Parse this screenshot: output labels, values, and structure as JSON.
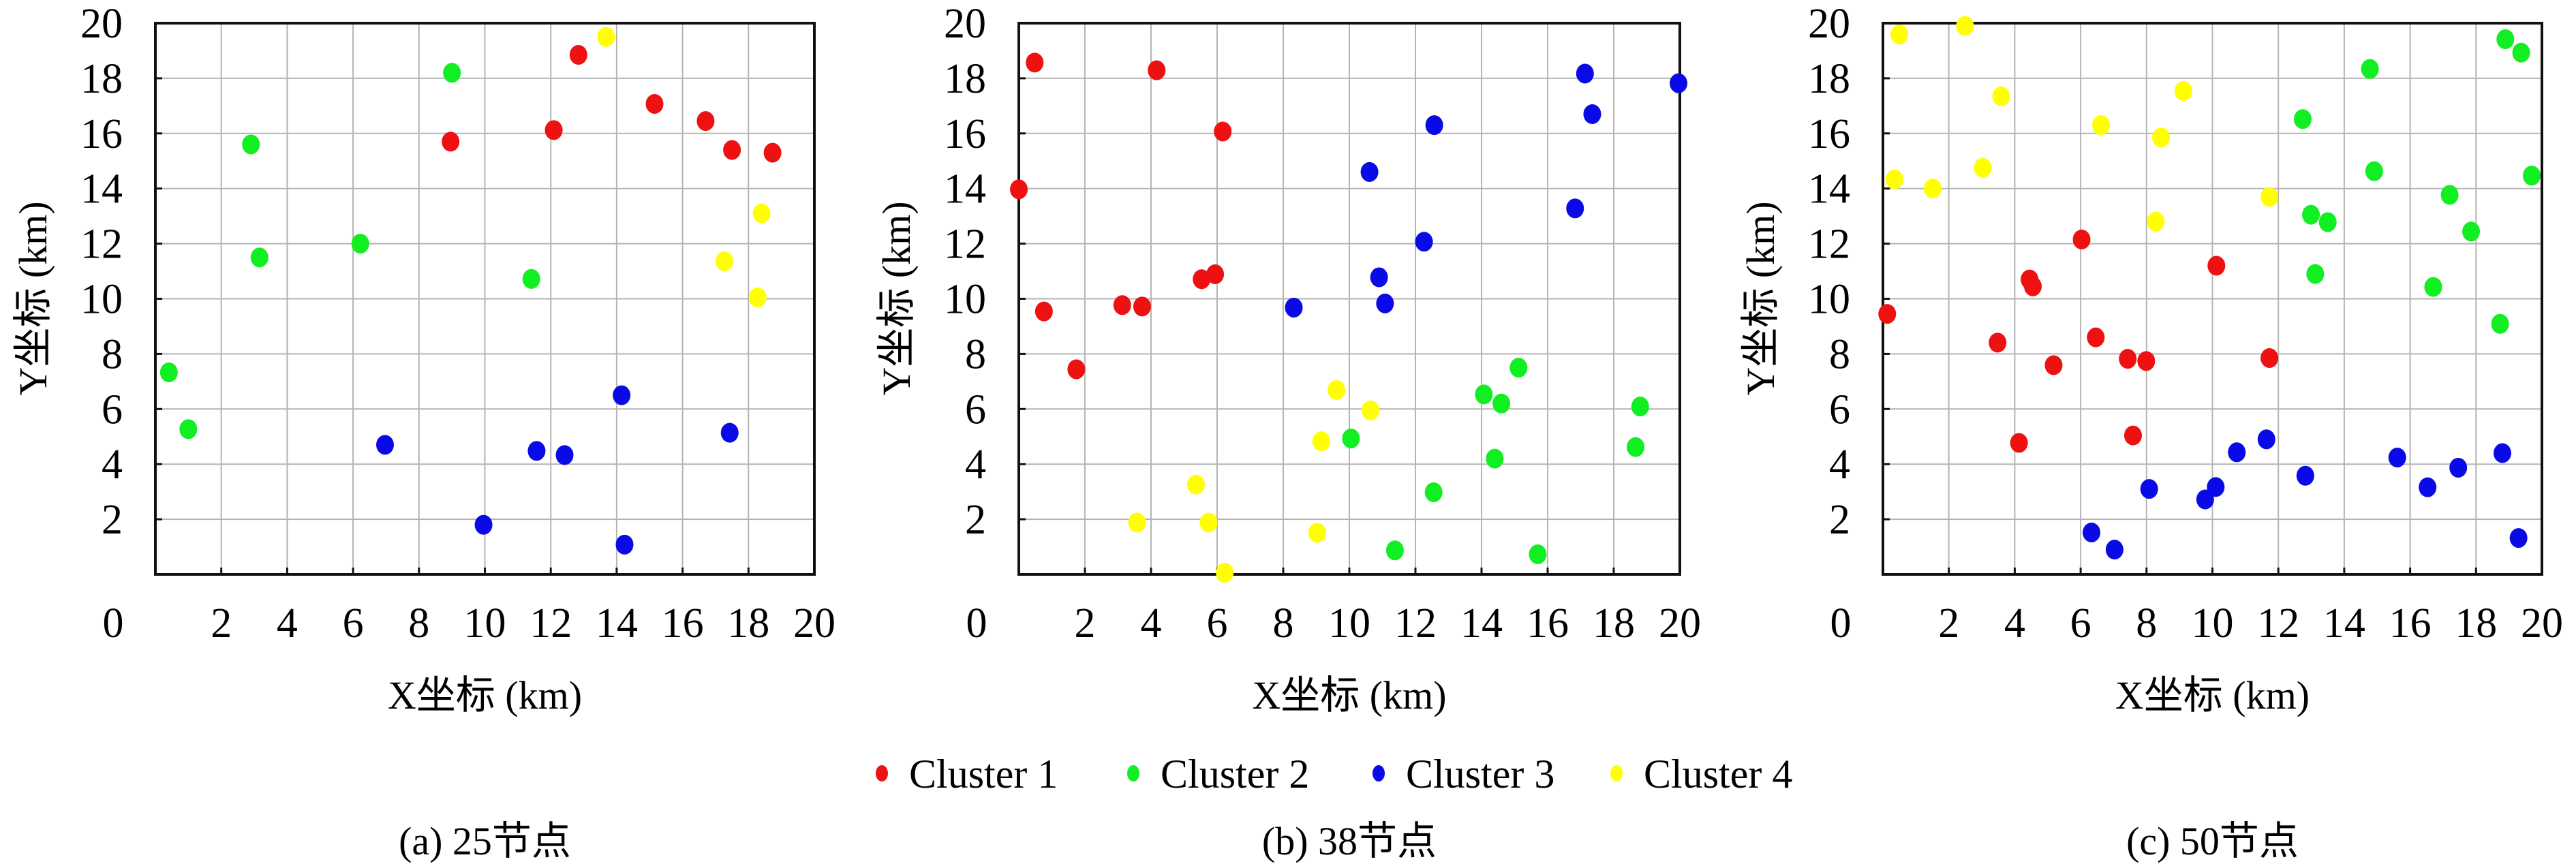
{
  "chart_data": [
    {
      "type": "scatter",
      "caption": "(a) 25节点",
      "xlabel": "X坐标 (km)",
      "ylabel": "Y坐标 (km)",
      "xlim": [
        0,
        20
      ],
      "ylim": [
        0,
        20
      ],
      "xticks": [
        "0",
        "2",
        "4",
        "6",
        "8",
        "10",
        "12",
        "14",
        "16",
        "18",
        "20"
      ],
      "yticks": [
        "2",
        "4",
        "6",
        "8",
        "10",
        "12",
        "14",
        "16",
        "18",
        "20"
      ],
      "grid": true,
      "series": [
        {
          "name": "Cluster 1",
          "points": [
            [
              8.96,
              15.7
            ],
            [
              12.09,
              16.12
            ],
            [
              12.84,
              18.85
            ],
            [
              15.15,
              17.07
            ],
            [
              16.7,
              16.45
            ],
            [
              17.5,
              15.4
            ],
            [
              18.73,
              15.3
            ]
          ]
        },
        {
          "name": "Cluster 2",
          "points": [
            [
              0.41,
              7.33
            ],
            [
              1.0,
              5.27
            ],
            [
              2.9,
              15.6
            ],
            [
              3.16,
              11.5
            ],
            [
              6.22,
              12.0
            ],
            [
              9.0,
              18.2
            ],
            [
              11.41,
              10.72
            ]
          ]
        },
        {
          "name": "Cluster 3",
          "points": [
            [
              6.97,
              4.7
            ],
            [
              9.96,
              1.8
            ],
            [
              11.57,
              4.48
            ],
            [
              12.42,
              4.33
            ],
            [
              14.15,
              6.5
            ],
            [
              14.24,
              1.08
            ],
            [
              17.43,
              5.14
            ]
          ]
        },
        {
          "name": "Cluster 4",
          "points": [
            [
              13.68,
              19.5
            ],
            [
              17.27,
              11.36
            ],
            [
              18.28,
              10.05
            ],
            [
              18.4,
              13.1
            ]
          ]
        }
      ]
    },
    {
      "type": "scatter",
      "caption": "(b) 38节点",
      "xlabel": "X坐标 (km)",
      "ylabel": "Y坐标 (km)",
      "xlim": [
        0,
        20
      ],
      "ylim": [
        0,
        20
      ],
      "xticks": [
        "0",
        "2",
        "4",
        "6",
        "8",
        "10",
        "12",
        "14",
        "16",
        "18",
        "20"
      ],
      "yticks": [
        "2",
        "4",
        "6",
        "8",
        "10",
        "12",
        "14",
        "16",
        "18",
        "20"
      ],
      "grid": true,
      "series": [
        {
          "name": "Cluster 1",
          "points": [
            [
              0.0,
              13.97
            ],
            [
              0.48,
              18.57
            ],
            [
              4.17,
              18.29
            ],
            [
              6.17,
              16.07
            ],
            [
              5.53,
              10.71
            ],
            [
              5.94,
              10.89
            ],
            [
              0.76,
              9.54
            ],
            [
              3.13,
              9.77
            ],
            [
              3.73,
              9.72
            ],
            [
              1.74,
              7.44
            ]
          ]
        },
        {
          "name": "Cluster 2",
          "points": [
            [
              10.05,
              4.93
            ],
            [
              11.38,
              0.87
            ],
            [
              12.55,
              2.98
            ],
            [
              14.07,
              6.53
            ],
            [
              14.4,
              4.2
            ],
            [
              14.6,
              6.2
            ],
            [
              15.12,
              7.5
            ],
            [
              15.7,
              0.73
            ],
            [
              18.66,
              4.62
            ],
            [
              18.8,
              6.09
            ]
          ]
        },
        {
          "name": "Cluster 3",
          "points": [
            [
              8.32,
              9.68
            ],
            [
              10.9,
              10.78
            ],
            [
              11.08,
              9.83
            ],
            [
              10.61,
              14.6
            ],
            [
              12.26,
              12.07
            ],
            [
              12.57,
              16.3
            ],
            [
              16.83,
              13.28
            ],
            [
              17.13,
              18.17
            ],
            [
              17.35,
              16.7
            ],
            [
              19.96,
              17.82
            ]
          ]
        },
        {
          "name": "Cluster 4",
          "points": [
            [
              3.58,
              1.88
            ],
            [
              5.36,
              3.26
            ],
            [
              5.74,
              1.88
            ],
            [
              6.23,
              0.06
            ],
            [
              9.03,
              1.51
            ],
            [
              9.15,
              4.83
            ],
            [
              9.61,
              6.69
            ],
            [
              10.64,
              5.95
            ]
          ]
        }
      ]
    },
    {
      "type": "scatter",
      "caption": "(c) 50节点",
      "xlabel": "X坐标 (km)",
      "ylabel": "Y坐标 (km)",
      "xlim": [
        0,
        20
      ],
      "ylim": [
        0,
        20
      ],
      "xticks": [
        "0",
        "2",
        "4",
        "6",
        "8",
        "10",
        "12",
        "14",
        "16",
        "18",
        "20"
      ],
      "yticks": [
        "2",
        "4",
        "6",
        "8",
        "10",
        "12",
        "14",
        "16",
        "18",
        "20"
      ],
      "grid": true,
      "series": [
        {
          "name": "Cluster 1",
          "points": [
            [
              0.13,
              9.45
            ],
            [
              3.48,
              8.41
            ],
            [
              4.13,
              4.77
            ],
            [
              4.45,
              10.7
            ],
            [
              4.55,
              10.45
            ],
            [
              5.18,
              7.59
            ],
            [
              6.03,
              12.15
            ],
            [
              6.46,
              8.6
            ],
            [
              7.43,
              7.82
            ],
            [
              7.59,
              5.04
            ],
            [
              7.99,
              7.74
            ],
            [
              10.12,
              11.2
            ],
            [
              11.73,
              7.85
            ]
          ]
        },
        {
          "name": "Cluster 2",
          "points": [
            [
              12.74,
              16.52
            ],
            [
              12.99,
              13.05
            ],
            [
              13.12,
              10.9
            ],
            [
              13.5,
              12.78
            ],
            [
              14.78,
              18.34
            ],
            [
              14.91,
              14.63
            ],
            [
              16.7,
              10.43
            ],
            [
              17.2,
              13.77
            ],
            [
              17.85,
              12.44
            ],
            [
              18.73,
              9.09
            ],
            [
              18.89,
              19.42
            ],
            [
              19.37,
              18.93
            ],
            [
              19.69,
              14.47
            ]
          ]
        },
        {
          "name": "Cluster 3",
          "points": [
            [
              6.33,
              1.52
            ],
            [
              7.03,
              0.9
            ],
            [
              8.08,
              3.1
            ],
            [
              9.78,
              2.72
            ],
            [
              10.1,
              3.17
            ],
            [
              10.74,
              4.43
            ],
            [
              11.64,
              4.9
            ],
            [
              12.82,
              3.58
            ],
            [
              15.61,
              4.24
            ],
            [
              16.53,
              3.16
            ],
            [
              17.46,
              3.87
            ],
            [
              18.8,
              4.4
            ],
            [
              19.29,
              1.32
            ]
          ]
        },
        {
          "name": "Cluster 4",
          "points": [
            [
              0.35,
              14.33
            ],
            [
              0.5,
              19.59
            ],
            [
              1.51,
              14.0
            ],
            [
              2.49,
              19.9
            ],
            [
              3.03,
              14.75
            ],
            [
              3.59,
              17.35
            ],
            [
              6.62,
              16.3
            ],
            [
              8.28,
              12.8
            ],
            [
              8.44,
              15.85
            ],
            [
              9.12,
              17.54
            ],
            [
              11.73,
              13.7
            ]
          ]
        }
      ]
    }
  ],
  "legend": {
    "placement": "bottom-center",
    "items": [
      {
        "label": "Cluster 1",
        "color": "#ee1111"
      },
      {
        "label": "Cluster 2",
        "color": "#11ee22"
      },
      {
        "label": "Cluster 3",
        "color": "#0a0ae6"
      },
      {
        "label": "Cluster 4",
        "color": "#ffff00"
      }
    ]
  },
  "colors": {
    "grid": "#b4b4b4",
    "axis": "#111111"
  }
}
